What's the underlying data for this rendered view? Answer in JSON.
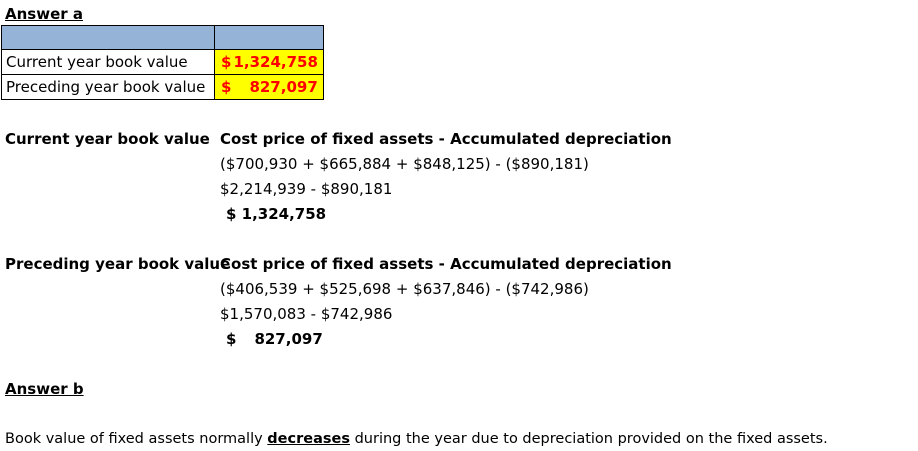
{
  "answer_a": {
    "heading": "Answer a",
    "table": {
      "rows": [
        {
          "label": "Current year book value",
          "currency": "$",
          "amount": "1,324,758"
        },
        {
          "label": "Preceding year book value",
          "currency": "$",
          "amount": "827,097"
        }
      ]
    },
    "current": {
      "label": "Current year book value",
      "formula": "Cost price of fixed assets - Accumulated depreciation",
      "step1": "($700,930 + $665,884 + $848,125) - ($890,181)",
      "step2": "$2,214,939 - $890,181",
      "result": "$ 1,324,758"
    },
    "preceding": {
      "label": "Preceding year book value",
      "formula": "Cost price of fixed assets - Accumulated depreciation",
      "step1": "($406,539 + $525,698 + $637,846) - ($742,986)",
      "step2": "$1,570,083 - $742,986",
      "result_currency": "$",
      "result_amount": "827,097"
    }
  },
  "answer_b": {
    "heading": "Answer b",
    "text_before": "Book value of fixed assets normally ",
    "emphasis": "decreases",
    "text_after": " during the year due to depreciation provided on the fixed assets."
  },
  "colors": {
    "header_fill": "#95b3d7",
    "value_fill": "#ffff00",
    "value_text": "#ff0000"
  }
}
